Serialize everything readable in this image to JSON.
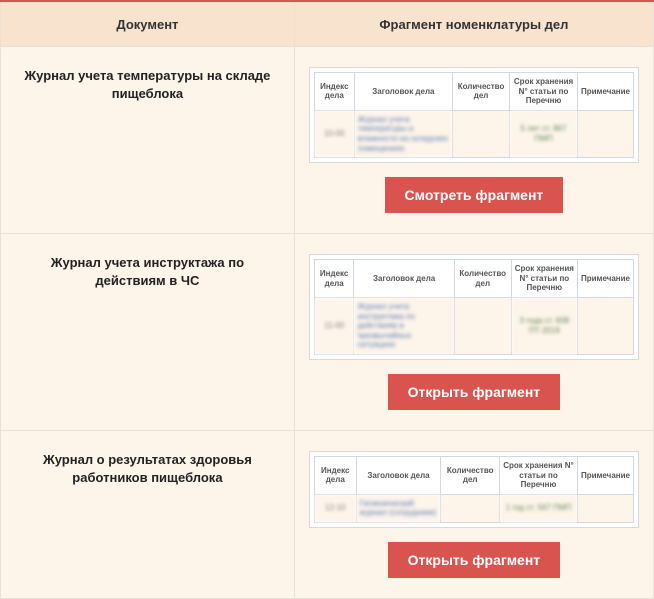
{
  "colors": {
    "accent": "#d9534f",
    "header_bg": "#f8e3cf",
    "cell_bg": "#fdf4ea",
    "border": "#eae0d5",
    "preview_border": "#cfd8e3",
    "preview_text": "#888888",
    "link_blur": "#5a7db5"
  },
  "headers": {
    "doc": "Документ",
    "fragment": "Фрагмент номенклатуры дел"
  },
  "preview_headers": {
    "index": "Индекс дела",
    "title": "Заголовок дела",
    "count": "Количество дел",
    "retention": "Срок хранения N° статьи по Перечню",
    "note": "Примечание"
  },
  "rows": [
    {
      "title": "Журнал учета температуры на складе пищеблока",
      "preview": {
        "index": "10-00",
        "case_title": "Журнал учета температуры и влажности на складских помещениях",
        "retention": "5 лет ст. 867 ПМП"
      },
      "button_label": "Смотреть фрагмент"
    },
    {
      "title": "Журнал учета инструктажа по действиям в ЧС",
      "preview": {
        "index": "11-00",
        "case_title": "Журнал учета инструктажа по действиям в чрезвычайных ситуациях",
        "retention": "3 года ст. 608 ПТ-2019"
      },
      "button_label": "Открыть фрагмент"
    },
    {
      "title": "Журнал о результатах здоровья работников пищеблока",
      "preview": {
        "index": "12-10",
        "case_title": "Гигиенический журнал (сотрудники)",
        "retention": "1 год ст. 567 ПМП"
      },
      "button_label": "Открыть фрагмент"
    }
  ]
}
